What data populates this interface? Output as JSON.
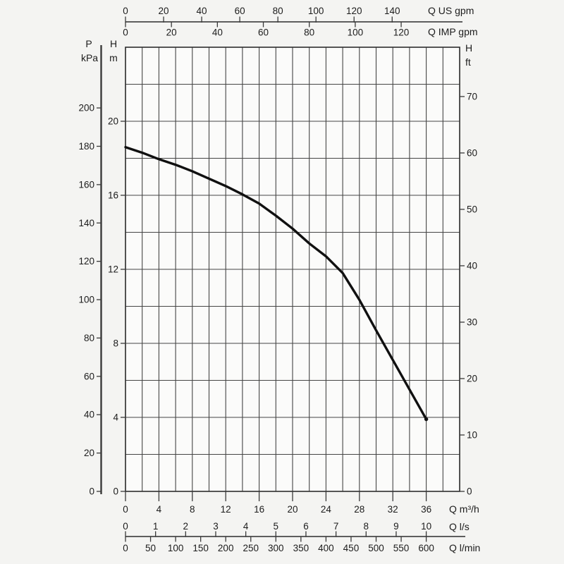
{
  "page": {
    "background": "#f4f4f2"
  },
  "chart_data": {
    "type": "line",
    "plot": {
      "x_unit": "m³/h",
      "y_unit": "m",
      "x_min": 0,
      "x_max": 40,
      "x_grid_step": 2,
      "y_min": 0,
      "y_max": 24,
      "y_grid_step": 2,
      "grid": "on",
      "legend": "none"
    },
    "series": [
      {
        "name": "head-capacity-curve",
        "color": "#101010",
        "x_m3h": [
          0,
          2,
          4,
          6,
          8,
          10,
          12,
          14,
          16,
          18,
          20,
          22,
          24,
          26,
          28,
          30,
          32,
          34,
          36
        ],
        "y_m": [
          18.6,
          18.3,
          17.95,
          17.65,
          17.3,
          16.9,
          16.5,
          16.05,
          15.55,
          14.9,
          14.2,
          13.4,
          12.7,
          11.8,
          10.35,
          8.7,
          7.1,
          5.5,
          3.9
        ],
        "end_marker": true
      }
    ],
    "axes": {
      "top": [
        {
          "id": "q-us-gpm",
          "label": "Q US gpm",
          "ticks": [
            0,
            20,
            40,
            60,
            80,
            100,
            120,
            140
          ],
          "m3h_per_unit": 0.228
        },
        {
          "id": "q-imp-gpm",
          "label": "Q IMP gpm",
          "ticks": [
            0,
            20,
            40,
            60,
            80,
            100,
            120
          ],
          "m3h_per_unit": 0.275
        }
      ],
      "left": [
        {
          "id": "p-kpa",
          "label_lines": [
            "P",
            "kPa"
          ],
          "ticks": [
            0,
            20,
            40,
            60,
            80,
            100,
            120,
            140,
            160,
            180,
            200
          ],
          "m_per_unit": 0.1036
        },
        {
          "id": "h-m",
          "label_lines": [
            "H",
            "m"
          ],
          "ticks": [
            0,
            4,
            8,
            12,
            16,
            20
          ],
          "m_per_unit": 1
        }
      ],
      "right": [
        {
          "id": "h-ft",
          "label_lines": [
            "H",
            "ft"
          ],
          "ticks": [
            0,
            10,
            20,
            30,
            40,
            50,
            60,
            70
          ],
          "m_per_unit": 0.3048
        }
      ],
      "bottom": [
        {
          "id": "q-m3h",
          "label": "Q m³/h",
          "ticks": [
            0,
            4,
            8,
            12,
            16,
            20,
            24,
            28,
            32,
            36
          ],
          "m3h_per_unit": 1
        },
        {
          "id": "q-ls",
          "label": "Q l/s",
          "ticks": [
            0,
            1,
            2,
            3,
            4,
            5,
            6,
            7,
            8,
            9,
            10
          ],
          "m3h_per_unit": 3.6
        },
        {
          "id": "q-lmin",
          "label": "Q l/min",
          "ticks": [
            0,
            50,
            100,
            150,
            200,
            250,
            300,
            350,
            400,
            450,
            500,
            550,
            600
          ],
          "m3h_per_unit": 0.06
        }
      ]
    },
    "colors": {
      "background": "#f4f4f2",
      "plot_fill": "#fbfbfa",
      "grid": "#454545",
      "frame": "#2d2d2d",
      "axis": "#3a3a3a",
      "text": "#1c1c1c",
      "curve": "#101010"
    }
  }
}
